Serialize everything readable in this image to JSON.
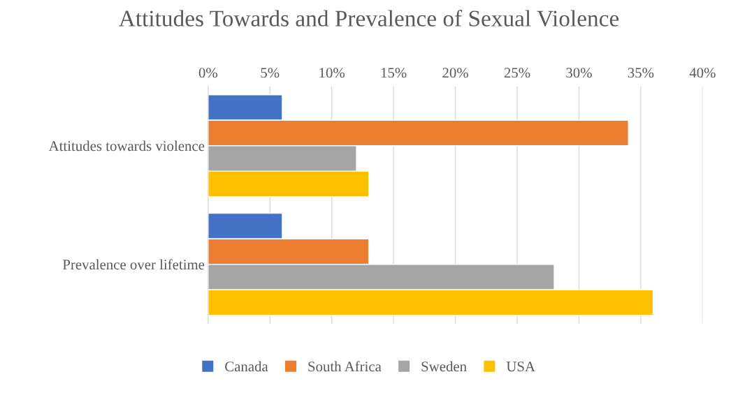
{
  "chart_data": {
    "type": "bar",
    "orientation": "horizontal",
    "title": "Attitudes Towards and Prevalence of Sexual Violence",
    "categories": [
      "Attitudes towards violence",
      "Prevalence over lifetime"
    ],
    "series": [
      {
        "name": "Canada",
        "color": "#4472c4",
        "values": [
          6,
          6
        ]
      },
      {
        "name": "South Africa",
        "color": "#ed7d31",
        "values": [
          34,
          13
        ]
      },
      {
        "name": "Sweden",
        "color": "#a5a5a5",
        "values": [
          12,
          28
        ]
      },
      {
        "name": "USA",
        "color": "#ffc000",
        "values": [
          13,
          36
        ]
      }
    ],
    "xlim": [
      0,
      40
    ],
    "xticks": [
      {
        "value": 0,
        "label": "0%"
      },
      {
        "value": 5,
        "label": "5%"
      },
      {
        "value": 10,
        "label": "10%"
      },
      {
        "value": 15,
        "label": "15%"
      },
      {
        "value": 20,
        "label": "20%"
      },
      {
        "value": 25,
        "label": "25%"
      },
      {
        "value": 30,
        "label": "30%"
      },
      {
        "value": 35,
        "label": "35%"
      },
      {
        "value": 40,
        "label": "40%"
      }
    ],
    "grid": "x",
    "legend": "bottom"
  }
}
